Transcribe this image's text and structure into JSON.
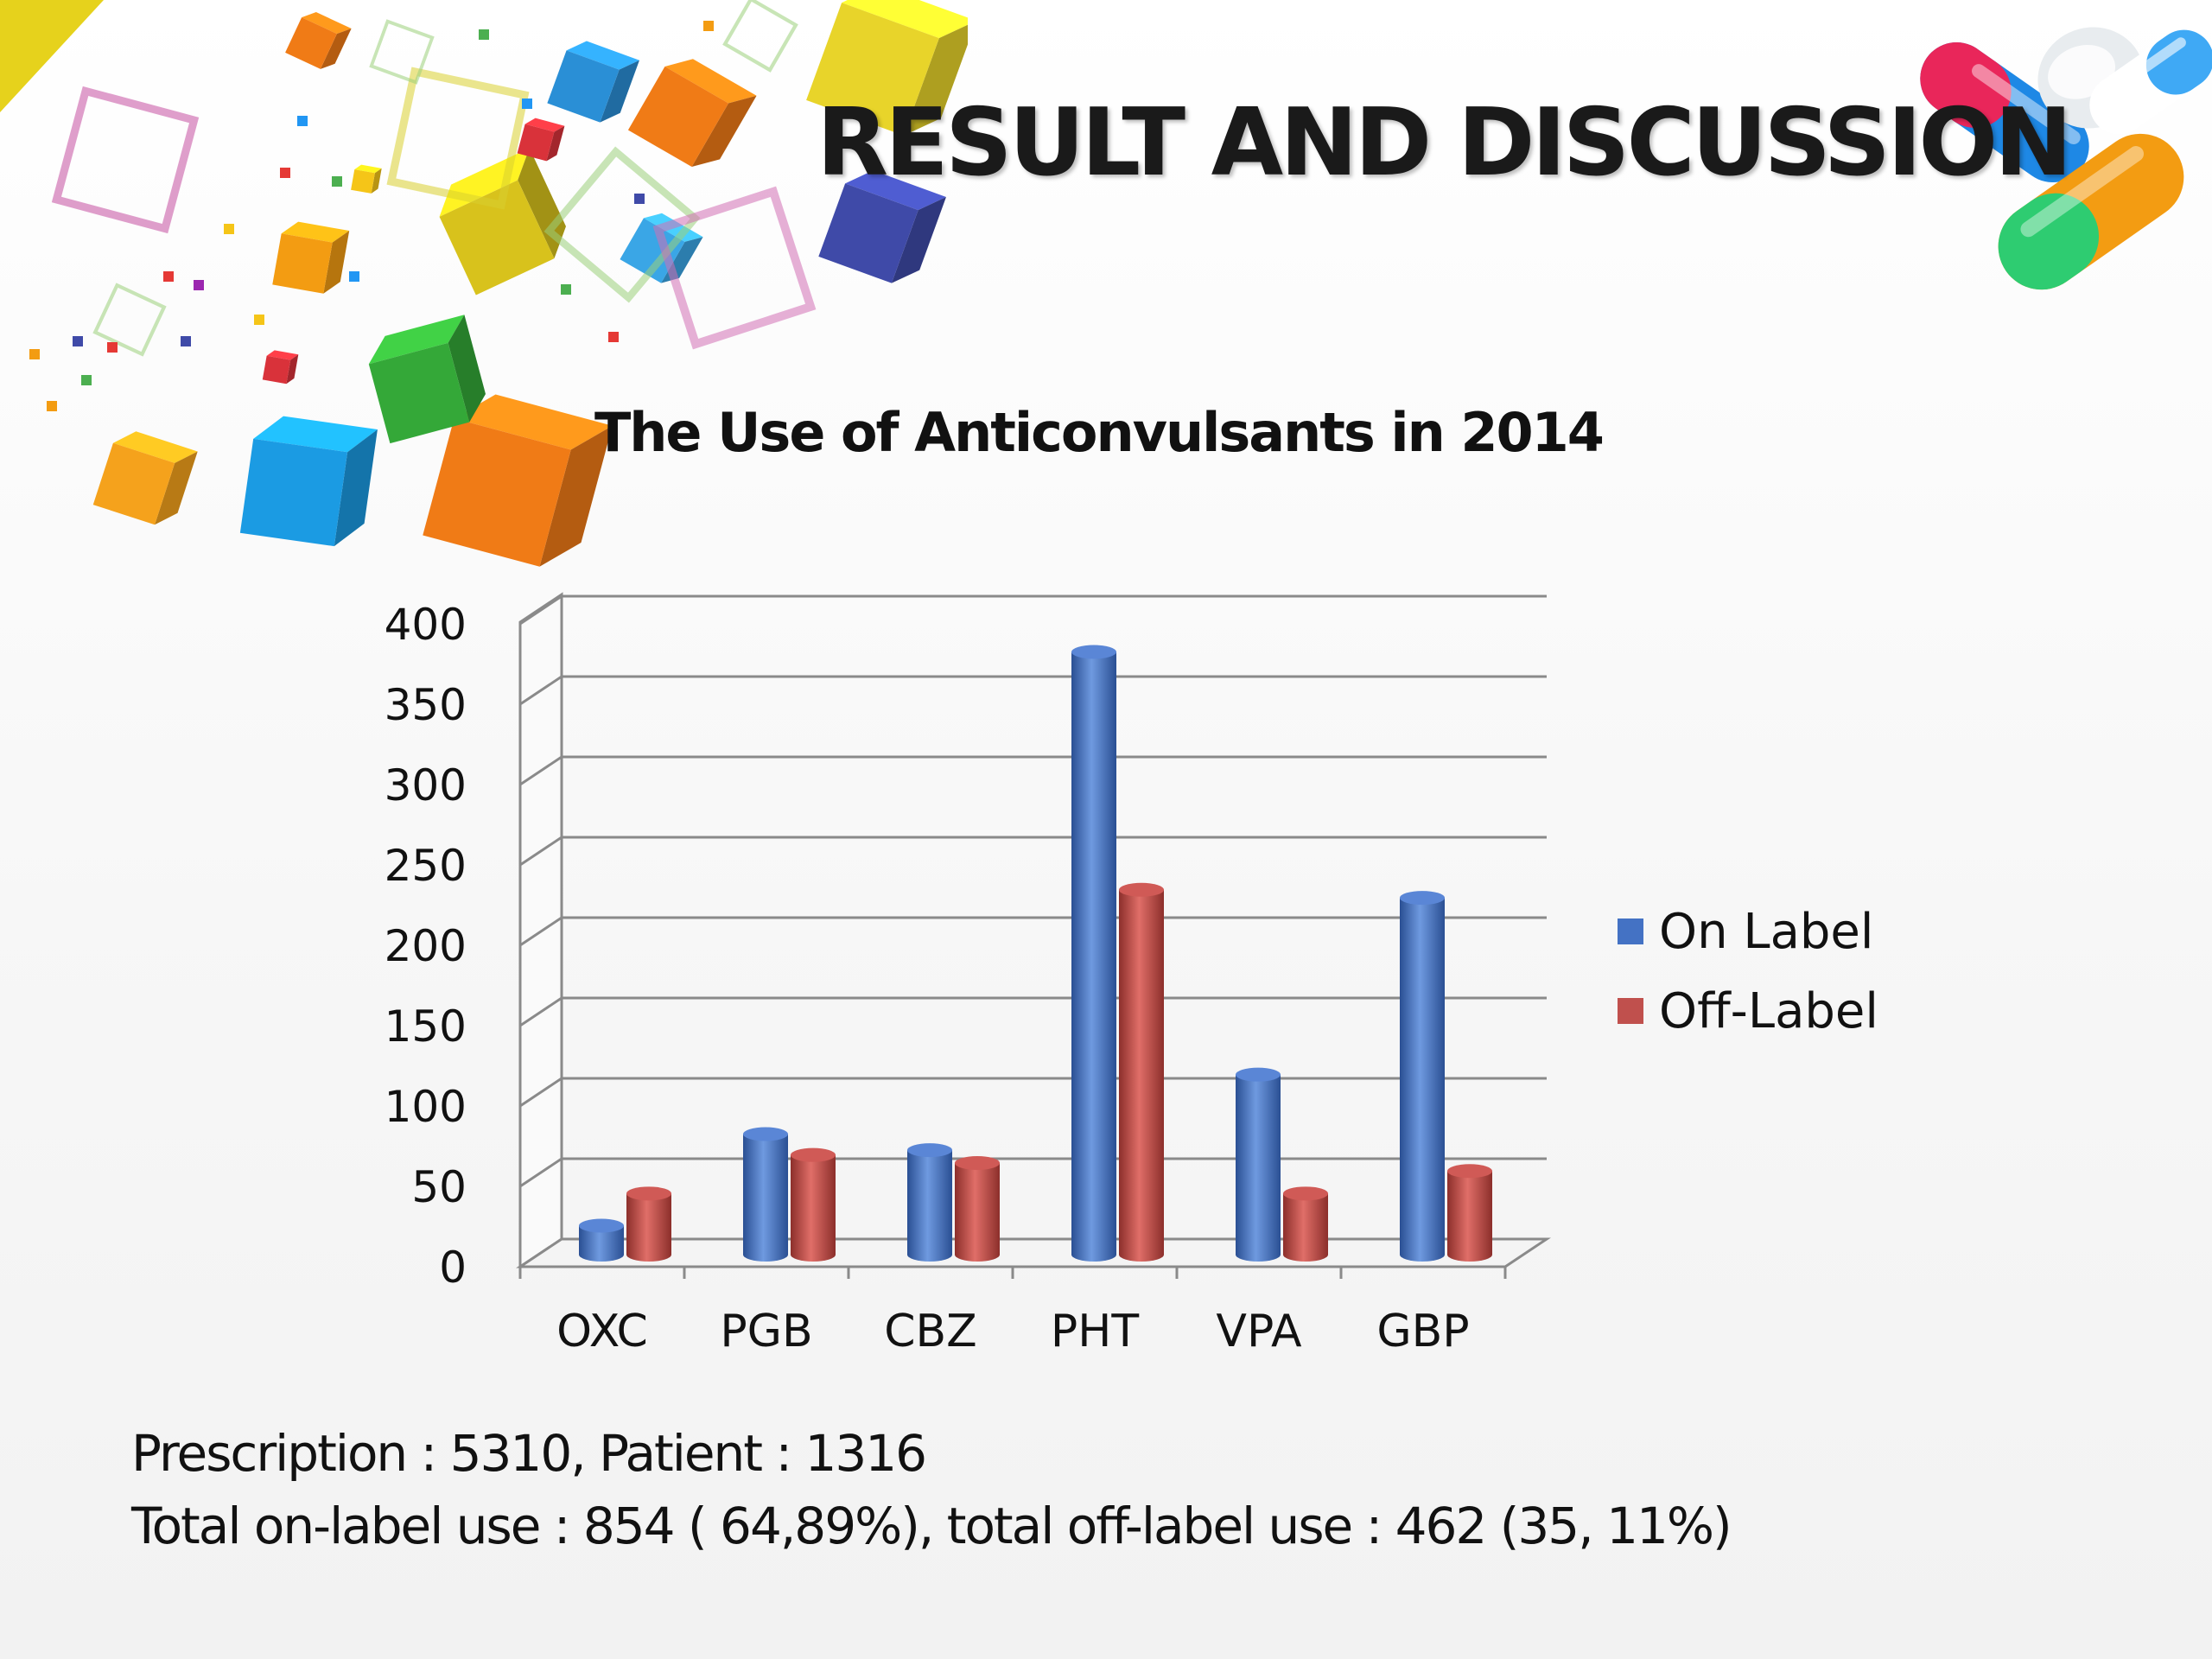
{
  "slide": {
    "title": "RESULT AND DISCUSSION"
  },
  "chart_data": {
    "type": "bar",
    "title": "The Use of Anticonvulsants in 2014",
    "categories": [
      "OXC",
      "PGB",
      "CBZ",
      "PHT",
      "VPA",
      "GBP"
    ],
    "series": [
      {
        "name": "On Label",
        "values": [
          18,
          75,
          65,
          375,
          112,
          222
        ]
      },
      {
        "name": "Off-Label",
        "values": [
          38,
          62,
          57,
          227,
          38,
          52
        ]
      }
    ],
    "xlabel": "",
    "ylabel": "",
    "ylim": [
      0,
      400
    ],
    "yticks": [
      "0",
      "50",
      "100",
      "150",
      "200",
      "250",
      "300",
      "350",
      "400"
    ],
    "grid": true,
    "legend_position": "right",
    "colors": {
      "On Label": "#4472c4",
      "Off-Label": "#c0504d"
    }
  },
  "legend": {
    "items": [
      {
        "label": "On Label",
        "color": "#4472c4"
      },
      {
        "label": "Off-Label",
        "color": "#c0504d"
      }
    ]
  },
  "footer": {
    "line1": "Prescription : 5310, Patient : 1316",
    "line2": "Total on-label use : 854 ( 64,89%), total off-label use : 462 (35, 11%)"
  }
}
